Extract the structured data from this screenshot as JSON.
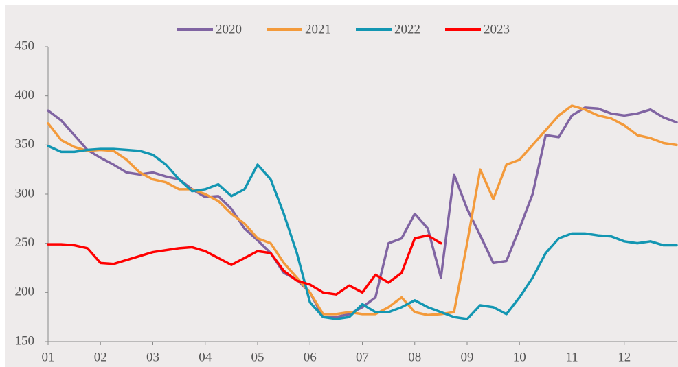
{
  "chart_data": {
    "type": "line",
    "x": [
      1,
      1.25,
      1.5,
      1.75,
      2,
      2.25,
      2.5,
      2.75,
      3,
      3.25,
      3.5,
      3.75,
      4,
      4.25,
      4.5,
      4.75,
      5,
      5.25,
      5.5,
      5.75,
      6,
      6.25,
      6.5,
      6.75,
      7,
      7.25,
      7.5,
      7.75,
      8,
      8.25,
      8.5,
      8.75,
      9,
      9.25,
      9.5,
      9.75,
      10,
      10.25,
      10.5,
      10.75,
      11,
      11.25,
      11.5,
      11.75,
      12,
      12.25,
      12.5,
      12.75,
      13
    ],
    "series": [
      {
        "name": "2020",
        "color": "#8064a2",
        "values": [
          385,
          375,
          360,
          345,
          337,
          330,
          322,
          320,
          322,
          318,
          315,
          305,
          297,
          298,
          285,
          265,
          253,
          240,
          220,
          213,
          200,
          175,
          175,
          178,
          185,
          195,
          250,
          255,
          280,
          265,
          215,
          320,
          285,
          258,
          230,
          232,
          265,
          300,
          360,
          358,
          380,
          388,
          387,
          382,
          380,
          382,
          386,
          378,
          373
        ]
      },
      {
        "name": "2021",
        "color": "#f39a3b",
        "values": [
          372,
          355,
          348,
          344,
          345,
          344,
          335,
          322,
          315,
          312,
          305,
          305,
          300,
          293,
          280,
          270,
          255,
          250,
          230,
          215,
          200,
          178,
          178,
          180,
          178,
          178,
          185,
          195,
          180,
          177,
          178,
          180,
          250,
          325,
          295,
          330,
          335,
          350,
          365,
          380,
          390,
          386,
          380,
          377,
          370,
          360,
          357,
          352,
          350
        ]
      },
      {
        "name": "2022",
        "color": "#1396b2",
        "values": [
          349,
          343,
          343,
          345,
          346,
          346,
          345,
          344,
          340,
          330,
          315,
          303,
          305,
          310,
          298,
          305,
          330,
          315,
          280,
          240,
          190,
          175,
          173,
          175,
          188,
          180,
          180,
          185,
          192,
          185,
          180,
          175,
          173,
          187,
          185,
          178,
          195,
          215,
          240,
          255,
          260,
          260,
          258,
          257,
          252,
          250,
          252,
          248,
          248
        ]
      },
      {
        "name": "2023",
        "color": "#ff0000",
        "values": [
          249,
          249,
          248,
          245,
          230,
          229,
          233,
          237,
          241,
          243,
          245,
          246,
          242,
          235,
          228,
          235,
          242,
          240,
          222,
          212,
          208,
          200,
          198,
          207,
          200,
          218,
          210,
          220,
          255,
          258,
          250,
          null,
          null,
          null,
          null,
          null,
          null,
          null,
          null,
          null,
          null,
          null,
          null,
          null,
          null,
          null,
          null,
          null,
          null
        ]
      }
    ],
    "xlim": [
      1,
      13
    ],
    "xticks": [
      {
        "value": 1,
        "label": "01"
      },
      {
        "value": 2,
        "label": "02"
      },
      {
        "value": 3,
        "label": "03"
      },
      {
        "value": 4,
        "label": "04"
      },
      {
        "value": 5,
        "label": "05"
      },
      {
        "value": 6,
        "label": "06"
      },
      {
        "value": 7,
        "label": "07"
      },
      {
        "value": 8,
        "label": "08"
      },
      {
        "value": 9,
        "label": "09"
      },
      {
        "value": 10,
        "label": "10"
      },
      {
        "value": 11,
        "label": "11"
      },
      {
        "value": 12,
        "label": "12"
      }
    ],
    "ylim": [
      150,
      450
    ],
    "yticks": [
      150,
      200,
      250,
      300,
      350,
      400,
      450
    ],
    "legend": "top"
  }
}
